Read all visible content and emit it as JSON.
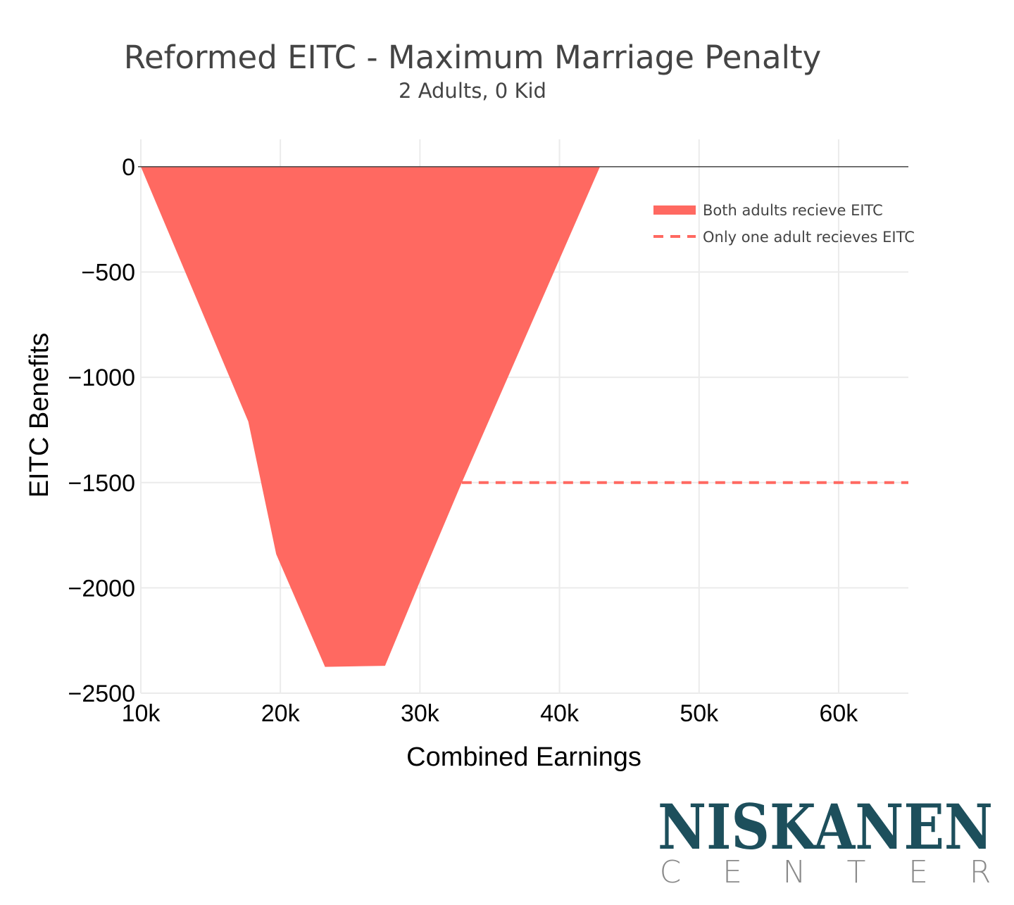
{
  "chart_data": {
    "type": "area",
    "title": "Reformed EITC - Maximum Marriage Penalty",
    "subtitle": "2 Adults, 0 Kid",
    "xlabel": "Combined Earnings",
    "ylabel": "EITC Benefits",
    "xlim": [
      10000,
      65000
    ],
    "ylim": [
      -2500,
      130
    ],
    "x_ticks": [
      10000,
      20000,
      30000,
      40000,
      50000,
      60000
    ],
    "x_tick_labels": [
      "10k",
      "20k",
      "30k",
      "40k",
      "50k",
      "60k"
    ],
    "y_ticks": [
      0,
      -500,
      -1000,
      -1500,
      -2000,
      -2500
    ],
    "y_tick_labels": [
      "0",
      "−500",
      "−1000",
      "−1500",
      "−2000",
      "−2500"
    ],
    "grid": true,
    "legend_position": "top-right",
    "series": [
      {
        "name": "Both adults recieve EITC",
        "style": "filled-area",
        "color": "#ff6961",
        "x": [
          10000,
          13500,
          17700,
          19700,
          23200,
          27500,
          30000,
          33000,
          42900
        ],
        "y": [
          0,
          -550,
          -1210,
          -1840,
          -2375,
          -2370,
          -1970,
          -1500,
          0
        ]
      },
      {
        "name": "Only one adult recieves EITC",
        "style": "dashed-line",
        "color": "#ff6961",
        "x": [
          33000,
          65000
        ],
        "y": [
          -1500,
          -1500
        ]
      }
    ]
  },
  "logo": {
    "name": "NISKANEN",
    "sub_letters": [
      "C",
      "E",
      "N",
      "T",
      "E",
      "R"
    ]
  },
  "colors": {
    "area": "#ff6961",
    "logo_main": "#1d4f5c",
    "logo_sub": "#8a8a8a"
  }
}
